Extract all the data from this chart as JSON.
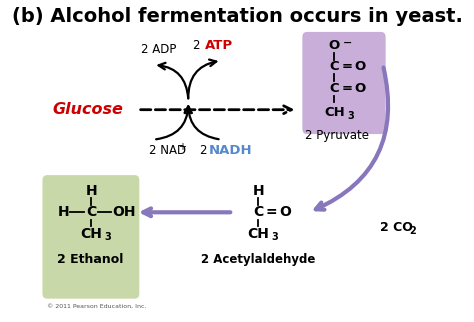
{
  "title": "(b) Alcohol fermentation occurs in yeast.",
  "title_fontsize": 14,
  "bg_color": "#ffffff",
  "fig_width": 4.74,
  "fig_height": 3.22,
  "pyruvate_box_color": "#c8aed8",
  "ethanol_box_color": "#c8d8a8",
  "glucose_color": "#cc0000",
  "atp_color": "#cc0000",
  "nadh_color": "#5588cc",
  "arrow_purple_color": "#8877bb",
  "copyright": "© 2011 Pearson Education, Inc.",
  "xlim": [
    0,
    10
  ],
  "ylim": [
    0,
    7.5
  ]
}
